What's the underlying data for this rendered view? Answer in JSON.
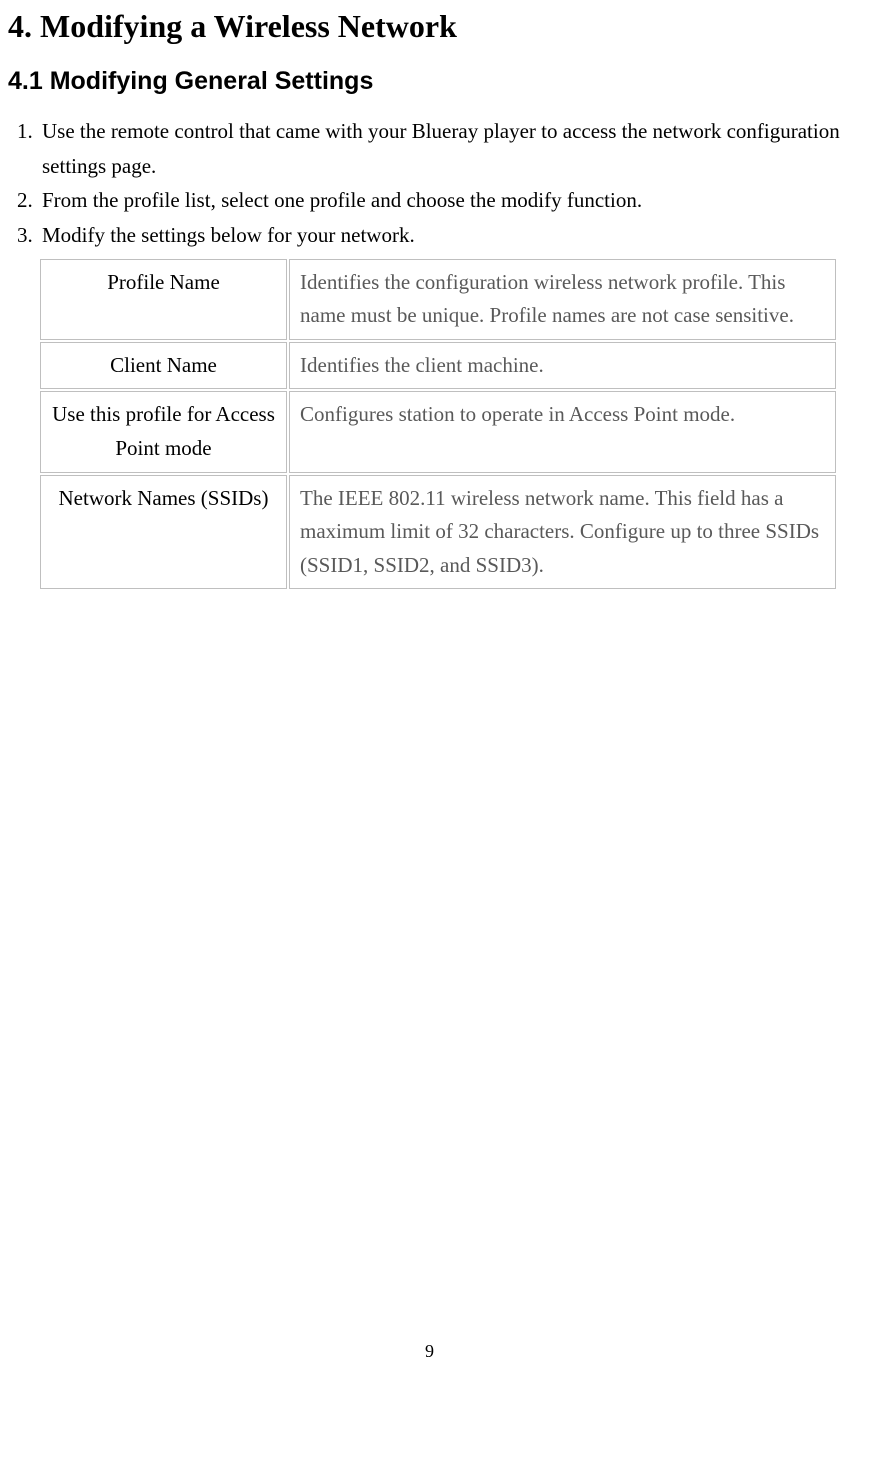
{
  "chapter_title": "4. Modifying a Wireless Network",
  "section_title": "4.1 Modifying General Settings",
  "steps": [
    "Use the remote control that came with your Blueray player to access the network configuration settings page.",
    "From the profile list, select one profile and choose the modify function.",
    "Modify the settings below for your network."
  ],
  "settings_table": {
    "rows": [
      {
        "label": "Profile Name",
        "desc": "Identifies the configuration wireless network profile. This name must be unique. Profile names are not case sensitive."
      },
      {
        "label": "Client Name",
        "desc": "Identifies the client machine."
      },
      {
        "label": "Use this profile for Access Point mode",
        "desc": "Configures station to operate in Access Point mode."
      },
      {
        "label": "Network Names (SSIDs)",
        "desc": "The IEEE 802.11 wireless network name. This field has a maximum limit of 32 characters. Configure up to three SSIDs (SSID1, SSID2, and SSID3)."
      }
    ]
  },
  "page_number": "9",
  "colors": {
    "text_primary": "#000000",
    "text_secondary": "#595959",
    "border": "#bfbfbf",
    "background": "#ffffff"
  },
  "fonts": {
    "body": "Times New Roman",
    "section_heading": "Arial"
  }
}
